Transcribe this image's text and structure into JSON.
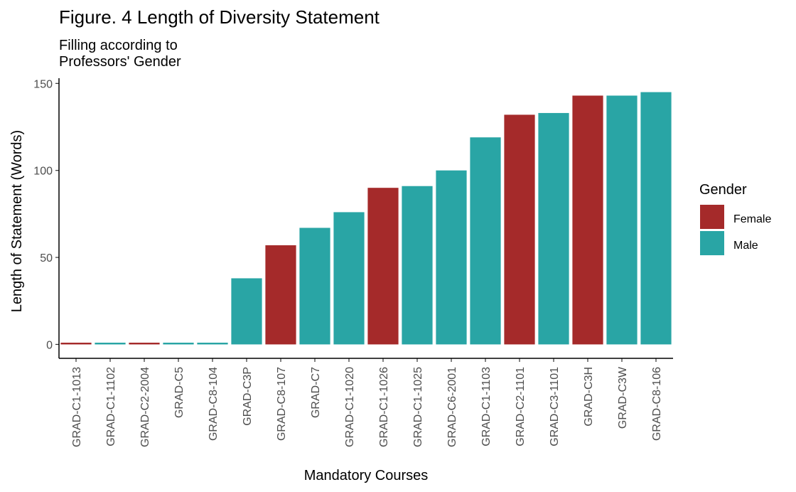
{
  "chart_data": {
    "type": "bar",
    "title": "Figure. 4 Length of Diversity Statement",
    "subtitle_lines": [
      "Filling according to",
      "Professors' Gender"
    ],
    "xlabel": "Mandatory Courses",
    "ylabel": "Length of Statement (Words)",
    "ylim": [
      -8,
      153
    ],
    "yticks": [
      0,
      50,
      100,
      150
    ],
    "grid": false,
    "legend_position": "right",
    "legend": {
      "title": "Gender",
      "entries": [
        {
          "label": "Female",
          "color": "#A52A2A"
        },
        {
          "label": "Male",
          "color": "#29A5A5"
        }
      ]
    },
    "categories": [
      "GRAD-C1-1013",
      "GRAD-C1-1102",
      "GRAD-C2-2004",
      "GRAD-C5",
      "GRAD-C8-104",
      "GRAD-C3P",
      "GRAD-C8-107",
      "GRAD-C7",
      "GRAD-C1-1020",
      "GRAD-C1-1026",
      "GRAD-C1-1025",
      "GRAD-C6-2001",
      "GRAD-C1-1103",
      "GRAD-C2-1101",
      "GRAD-C3-1101",
      "GRAD-C3H",
      "GRAD-C3W",
      "GRAD-C8-106"
    ],
    "values": [
      1,
      1,
      1,
      1,
      1,
      38,
      57,
      67,
      76,
      90,
      91,
      100,
      119,
      132,
      133,
      143,
      143,
      145
    ],
    "gender": [
      "Female",
      "Male",
      "Female",
      "Male",
      "Male",
      "Male",
      "Female",
      "Male",
      "Male",
      "Female",
      "Male",
      "Male",
      "Male",
      "Female",
      "Male",
      "Female",
      "Male",
      "Male"
    ]
  }
}
